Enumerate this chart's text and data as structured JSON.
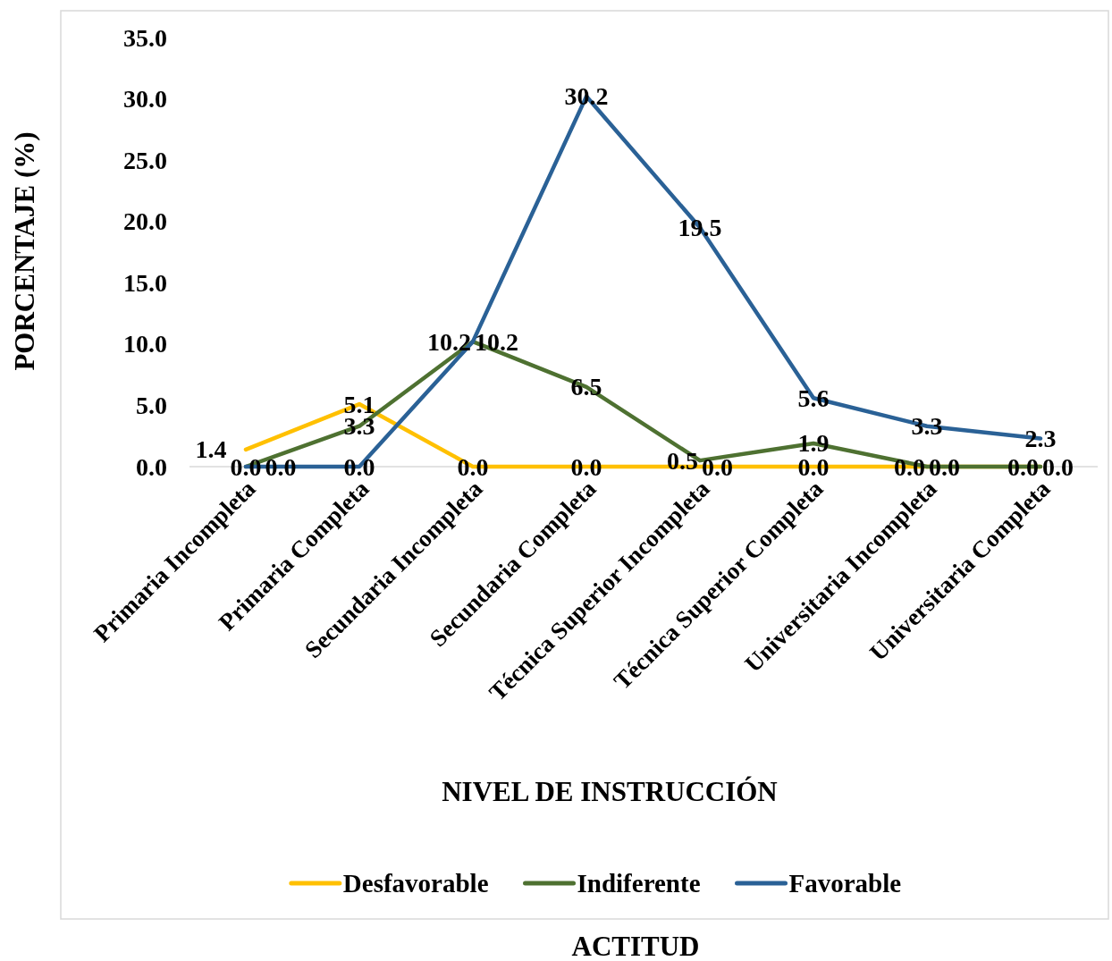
{
  "chart_data": {
    "type": "line",
    "xlabel": "NIVEL DE INSTRUCCIÓN",
    "ylabel": "PORCENTAJE (%)",
    "legend_title": "ACTITUD",
    "categories": [
      "Primaria Incompleta",
      "Primaria Completa",
      "Secundaria Incompleta",
      "Secundaria Completa",
      "Técnica Superior Incompleta",
      "Técnica Superior Completa",
      "Universitaria Incompleta",
      "Universitaria Completa"
    ],
    "series": [
      {
        "name": "Desfavorable",
        "color": "#ffc000",
        "values": [
          1.4,
          5.1,
          0,
          0,
          0,
          0,
          0,
          0
        ],
        "value_labels": [
          "1.4",
          "5.1",
          "0.0",
          "0.0",
          "0.0",
          "0.0",
          "0.0",
          "0.0"
        ]
      },
      {
        "name": "Indiferente",
        "color": "#4e7131",
        "values": [
          0,
          3.3,
          10.2,
          6.5,
          0.5,
          1.9,
          0,
          0
        ],
        "value_labels": [
          "0.0",
          "3.3",
          "10.2",
          "6.5",
          "0.5",
          "1.9",
          "0.0",
          "0.0"
        ]
      },
      {
        "name": "Favorable",
        "color": "#2a6196",
        "values": [
          0,
          0,
          10.2,
          30.2,
          19.5,
          5.6,
          3.3,
          2.3
        ],
        "value_labels": [
          "0.0",
          "0.0",
          "10.2",
          "30.2",
          "19.5",
          "5.6",
          "3.3",
          "2.3"
        ]
      }
    ],
    "ylim": [
      0,
      35
    ],
    "yticks": [
      {
        "value": 0,
        "label": "0.0"
      },
      {
        "value": 5,
        "label": "5.0"
      },
      {
        "value": 10,
        "label": "10.0"
      },
      {
        "value": 15,
        "label": "15.0"
      },
      {
        "value": 20,
        "label": "20.0"
      },
      {
        "value": 25,
        "label": "25.0"
      },
      {
        "value": 30,
        "label": "30.0"
      },
      {
        "value": 35,
        "label": "35.0"
      }
    ],
    "legend": "bottom"
  }
}
